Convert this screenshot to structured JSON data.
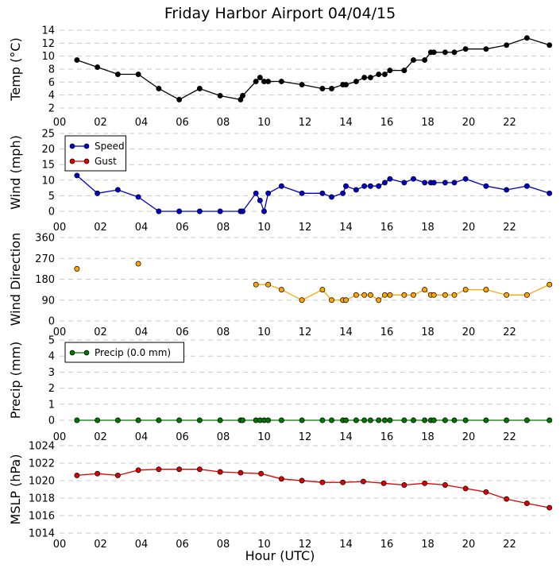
{
  "chart_data": {
    "title": "Friday Harbor Airport 04/04/15",
    "xlabel": "Hour (UTC)",
    "x_ticks": [
      "00",
      "02",
      "04",
      "06",
      "08",
      "10",
      "12",
      "14",
      "16",
      "18",
      "20",
      "22"
    ],
    "xlim": [
      0,
      24
    ],
    "panels": [
      {
        "id": "temp",
        "type": "line",
        "ylabel": "Temp (°C)",
        "ylim": [
          2,
          14
        ],
        "yticks": [
          2,
          4,
          6,
          8,
          10,
          12,
          14
        ],
        "grid": true,
        "legend": null,
        "series": [
          {
            "color": "#000000",
            "line": true,
            "x": [
              0.85,
              1.85,
              2.85,
              3.85,
              4.85,
              5.85,
              6.85,
              7.85,
              8.85,
              8.95,
              9.6,
              9.8,
              10.0,
              10.2,
              10.85,
              11.85,
              12.85,
              13.3,
              13.85,
              14.0,
              14.5,
              14.9,
              15.2,
              15.6,
              15.9,
              16.15,
              16.85,
              17.3,
              17.85,
              18.15,
              18.3,
              18.85,
              19.3,
              19.85,
              20.85,
              21.85,
              22.85,
              23.95
            ],
            "y": [
              9.4,
              8.3,
              7.2,
              7.2,
              5.0,
              3.3,
              5.0,
              3.9,
              3.3,
              3.9,
              6.1,
              6.7,
              6.1,
              6.1,
              6.1,
              5.6,
              5.0,
              5.0,
              5.6,
              5.6,
              6.1,
              6.7,
              6.7,
              7.2,
              7.2,
              7.8,
              7.8,
              9.4,
              9.4,
              10.6,
              10.6,
              10.6,
              10.6,
              11.1,
              11.1,
              11.7,
              12.8,
              11.7
            ]
          }
        ]
      },
      {
        "id": "wind",
        "type": "line",
        "ylabel": "Wind (mph)",
        "ylim": [
          0,
          25
        ],
        "yticks": [
          0,
          5,
          10,
          15,
          20,
          25
        ],
        "grid": true,
        "legend": {
          "position": "upper-left",
          "entries": [
            {
              "label": "Speed",
              "color": "#0000cc"
            },
            {
              "label": "Gust",
              "color": "#dd0000"
            }
          ]
        },
        "series": [
          {
            "name": "Speed",
            "color": "#0000cc",
            "line": true,
            "x": [
              0.85,
              1.85,
              2.85,
              3.85,
              4.85,
              5.85,
              6.85,
              7.85,
              8.85,
              8.95,
              9.6,
              9.8,
              10.0,
              10.2,
              10.85,
              11.85,
              12.85,
              13.3,
              13.85,
              14.0,
              14.5,
              14.9,
              15.2,
              15.6,
              15.9,
              16.15,
              16.85,
              17.3,
              17.85,
              18.15,
              18.3,
              18.85,
              19.3,
              19.85,
              20.85,
              21.85,
              22.85,
              23.95
            ],
            "y": [
              11.5,
              5.8,
              6.9,
              4.6,
              0,
              0,
              0,
              0,
              0,
              0,
              5.8,
              3.5,
              0,
              5.8,
              8.1,
              5.8,
              5.8,
              4.6,
              5.8,
              8.1,
              6.9,
              8.1,
              8.1,
              8.1,
              9.2,
              10.4,
              9.2,
              10.4,
              9.2,
              9.2,
              9.2,
              9.2,
              9.2,
              10.4,
              8.1,
              6.9,
              8.1,
              5.8
            ]
          },
          {
            "name": "Gust",
            "color": "#dd0000",
            "line": true,
            "x": [],
            "y": []
          }
        ]
      },
      {
        "id": "wdir",
        "type": "line",
        "ylabel": "Wind Direction",
        "ylim": [
          0,
          360
        ],
        "yticks": [
          0,
          90,
          180,
          270,
          360
        ],
        "grid": true,
        "legend": null,
        "series": [
          {
            "color": "#ffa500",
            "line": false,
            "x": [
              0.85,
              3.85
            ],
            "y": [
              225,
              247
            ]
          },
          {
            "color": "#ffa500",
            "line": true,
            "x": [
              9.6,
              10.2,
              10.85,
              11.85,
              12.85,
              13.3,
              13.85,
              14.0,
              14.5,
              14.9,
              15.2,
              15.6,
              15.9,
              16.15,
              16.85,
              17.3,
              17.85,
              18.15,
              18.3,
              18.85,
              19.3,
              19.85,
              20.85,
              21.85,
              22.85,
              23.95
            ],
            "y": [
              157,
              157,
              135,
              90,
              135,
              90,
              90,
              90,
              112,
              112,
              112,
              90,
              112,
              112,
              112,
              112,
              135,
              112,
              112,
              112,
              112,
              135,
              135,
              112,
              112,
              157
            ]
          }
        ]
      },
      {
        "id": "precip",
        "type": "line",
        "ylabel": "Precip (mm)",
        "ylim": [
          0,
          5
        ],
        "yticks": [
          0,
          1,
          2,
          3,
          4,
          5
        ],
        "grid": true,
        "legend": {
          "position": "upper-left",
          "entries": [
            {
              "label": "Precip (0.0 mm)",
              "color": "#007700"
            }
          ]
        },
        "series": [
          {
            "name": "Precip (0.0 mm)",
            "color": "#007700",
            "line": true,
            "x": [
              0.85,
              1.85,
              2.85,
              3.85,
              4.85,
              5.85,
              6.85,
              7.85,
              8.85,
              8.95,
              9.6,
              9.8,
              10.0,
              10.2,
              10.85,
              11.85,
              12.85,
              13.3,
              13.85,
              14.0,
              14.5,
              14.9,
              15.2,
              15.6,
              15.9,
              16.15,
              16.85,
              17.3,
              17.85,
              18.15,
              18.3,
              18.85,
              19.3,
              19.85,
              20.85,
              21.85,
              22.85,
              23.95
            ],
            "y": [
              0,
              0,
              0,
              0,
              0,
              0,
              0,
              0,
              0,
              0,
              0,
              0,
              0,
              0,
              0,
              0,
              0,
              0,
              0,
              0,
              0,
              0,
              0,
              0,
              0,
              0,
              0,
              0,
              0,
              0,
              0,
              0,
              0,
              0,
              0,
              0,
              0,
              0
            ]
          }
        ]
      },
      {
        "id": "mslp",
        "type": "line",
        "ylabel": "MSLP (hPa)",
        "ylim": [
          1014,
          1024
        ],
        "yticks": [
          1014,
          1016,
          1018,
          1020,
          1022,
          1024
        ],
        "grid": true,
        "legend": null,
        "series": [
          {
            "color": "#dd0000",
            "line": true,
            "x": [
              0.85,
              1.85,
              2.85,
              3.85,
              4.85,
              5.85,
              6.85,
              7.85,
              8.85,
              9.85,
              10.85,
              11.85,
              12.85,
              13.85,
              14.85,
              15.85,
              16.85,
              17.85,
              18.85,
              19.85,
              20.85,
              21.85,
              22.85,
              23.95
            ],
            "y": [
              1020.6,
              1020.8,
              1020.6,
              1021.2,
              1021.3,
              1021.3,
              1021.3,
              1021.0,
              1020.9,
              1020.8,
              1020.2,
              1020.0,
              1019.8,
              1019.8,
              1019.9,
              1019.7,
              1019.5,
              1019.7,
              1019.5,
              1019.1,
              1018.7,
              1017.9,
              1017.4,
              1016.9
            ]
          }
        ]
      }
    ]
  }
}
